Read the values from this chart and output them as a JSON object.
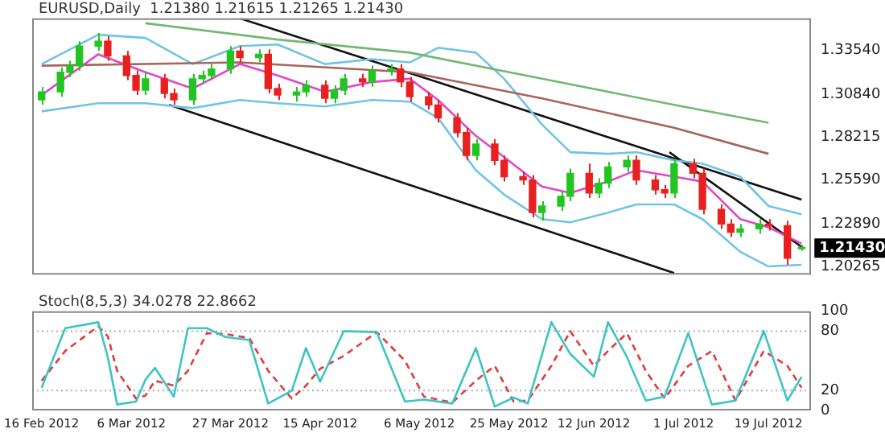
{
  "chart_data": [
    {
      "type": "candlestick",
      "title": "EURUSD,Daily  1.21380 1.21615 1.21265 1.21430",
      "x": [
        "2012-02-16",
        "2012-02-20",
        "2012-02-22",
        "2012-02-24",
        "2012-02-28",
        "2012-03-01",
        "2012-03-05",
        "2012-03-07",
        "2012-03-09",
        "2012-03-13",
        "2012-03-15",
        "2012-03-19",
        "2012-03-21",
        "2012-03-23",
        "2012-03-27",
        "2012-03-29",
        "2012-04-02",
        "2012-04-04",
        "2012-04-06",
        "2012-04-10",
        "2012-04-12",
        "2012-04-16",
        "2012-04-18",
        "2012-04-20",
        "2012-04-24",
        "2012-04-26",
        "2012-04-30",
        "2012-05-02",
        "2012-05-04",
        "2012-05-08",
        "2012-05-10",
        "2012-05-14",
        "2012-05-16",
        "2012-05-18",
        "2012-05-22",
        "2012-05-24",
        "2012-05-28",
        "2012-05-30",
        "2012-06-01",
        "2012-06-05",
        "2012-06-07",
        "2012-06-11",
        "2012-06-13",
        "2012-06-15",
        "2012-06-19",
        "2012-06-21",
        "2012-06-25",
        "2012-06-27",
        "2012-06-29",
        "2012-07-03",
        "2012-07-05",
        "2012-07-09",
        "2012-07-11",
        "2012-07-13",
        "2012-07-17",
        "2012-07-19",
        "2012-07-23",
        "2012-07-26"
      ],
      "ohlc": [
        [
          1.305,
          1.313,
          1.302,
          1.31
        ],
        [
          1.31,
          1.325,
          1.307,
          1.322
        ],
        [
          1.322,
          1.329,
          1.319,
          1.326
        ],
        [
          1.326,
          1.341,
          1.323,
          1.338
        ],
        [
          1.338,
          1.346,
          1.335,
          1.341
        ],
        [
          1.341,
          1.344,
          1.329,
          1.332
        ],
        [
          1.332,
          1.335,
          1.317,
          1.32
        ],
        [
          1.32,
          1.323,
          1.308,
          1.311
        ],
        [
          1.311,
          1.322,
          1.308,
          1.318
        ],
        [
          1.318,
          1.321,
          1.306,
          1.309
        ],
        [
          1.309,
          1.312,
          1.302,
          1.305
        ],
        [
          1.305,
          1.321,
          1.302,
          1.318
        ],
        [
          1.318,
          1.323,
          1.315,
          1.32
        ],
        [
          1.32,
          1.327,
          1.317,
          1.324
        ],
        [
          1.324,
          1.338,
          1.321,
          1.335
        ],
        [
          1.335,
          1.338,
          1.328,
          1.331
        ],
        [
          1.331,
          1.336,
          1.328,
          1.333
        ],
        [
          1.333,
          1.336,
          1.309,
          1.312
        ],
        [
          1.312,
          1.315,
          1.305,
          1.308
        ],
        [
          1.308,
          1.313,
          1.304,
          1.31
        ],
        [
          1.31,
          1.317,
          1.307,
          1.314
        ],
        [
          1.314,
          1.317,
          1.303,
          1.306
        ],
        [
          1.306,
          1.314,
          1.303,
          1.311
        ],
        [
          1.311,
          1.321,
          1.308,
          1.318
        ],
        [
          1.318,
          1.321,
          1.313,
          1.316
        ],
        [
          1.316,
          1.326,
          1.313,
          1.323
        ],
        [
          1.323,
          1.327,
          1.32,
          1.324
        ],
        [
          1.324,
          1.327,
          1.313,
          1.316
        ],
        [
          1.316,
          1.319,
          1.304,
          1.307
        ],
        [
          1.307,
          1.31,
          1.299,
          1.302
        ],
        [
          1.302,
          1.305,
          1.291,
          1.294
        ],
        [
          1.294,
          1.297,
          1.282,
          1.285
        ],
        [
          1.285,
          1.288,
          1.268,
          1.271
        ],
        [
          1.271,
          1.281,
          1.268,
          1.278
        ],
        [
          1.278,
          1.281,
          1.265,
          1.268
        ],
        [
          1.268,
          1.271,
          1.255,
          1.258
        ],
        [
          1.258,
          1.261,
          1.253,
          1.256
        ],
        [
          1.256,
          1.259,
          1.233,
          1.236
        ],
        [
          1.236,
          1.243,
          1.231,
          1.24
        ],
        [
          1.24,
          1.249,
          1.237,
          1.246
        ],
        [
          1.246,
          1.263,
          1.243,
          1.26
        ],
        [
          1.26,
          1.266,
          1.245,
          1.248
        ],
        [
          1.248,
          1.257,
          1.245,
          1.254
        ],
        [
          1.254,
          1.267,
          1.251,
          1.264
        ],
        [
          1.264,
          1.271,
          1.261,
          1.268
        ],
        [
          1.268,
          1.271,
          1.253,
          1.256
        ],
        [
          1.256,
          1.259,
          1.247,
          1.25
        ],
        [
          1.25,
          1.253,
          1.245,
          1.248
        ],
        [
          1.248,
          1.269,
          1.245,
          1.266
        ],
        [
          1.266,
          1.269,
          1.257,
          1.26
        ],
        [
          1.26,
          1.263,
          1.235,
          1.238
        ],
        [
          1.238,
          1.241,
          1.226,
          1.229
        ],
        [
          1.229,
          1.232,
          1.221,
          1.224
        ],
        [
          1.224,
          1.229,
          1.221,
          1.226
        ],
        [
          1.226,
          1.232,
          1.223,
          1.229
        ],
        [
          1.229,
          1.232,
          1.225,
          1.228
        ],
        [
          1.228,
          1.231,
          1.204,
          1.208
        ],
        [
          1.2138,
          1.21615,
          1.21265,
          1.2143
        ]
      ],
      "colors": [
        "#22c422",
        "#22c422",
        "#22c422",
        "#22c422",
        "#22c422",
        "#e82020",
        "#e82020",
        "#e82020",
        "#22c422",
        "#e82020",
        "#e82020",
        "#22c422",
        "#22c422",
        "#22c422",
        "#22c422",
        "#e82020",
        "#22c422",
        "#e82020",
        "#e82020",
        "#22c422",
        "#22c422",
        "#e82020",
        "#22c422",
        "#22c422",
        "#e82020",
        "#22c422",
        "#22c422",
        "#e82020",
        "#e82020",
        "#e82020",
        "#e82020",
        "#e82020",
        "#e82020",
        "#22c422",
        "#e82020",
        "#e82020",
        "#e82020",
        "#e82020",
        "#22c422",
        "#22c422",
        "#22c422",
        "#e82020",
        "#22c422",
        "#22c422",
        "#22c422",
        "#e82020",
        "#e82020",
        "#e82020",
        "#22c422",
        "#e82020",
        "#e82020",
        "#e82020",
        "#e82020",
        "#22c422",
        "#22c422",
        "#e82020",
        "#e82020",
        "#22c422"
      ],
      "series": [
        {
          "type": "line",
          "color": "#72b872",
          "x": [
            "2012-03-09",
            "2012-04-06",
            "2012-05-04",
            "2012-06-01",
            "2012-06-29",
            "2012-07-19"
          ],
          "values": [
            1.352,
            1.342,
            1.334,
            1.318,
            1.302,
            1.291
          ]
        },
        {
          "type": "line",
          "color": "#a8645a",
          "x": [
            "2012-02-16",
            "2012-03-29",
            "2012-05-04",
            "2012-06-01",
            "2012-06-29",
            "2012-07-19"
          ],
          "values": [
            1.326,
            1.328,
            1.322,
            1.306,
            1.288,
            1.272
          ]
        },
        {
          "type": "line",
          "color": "#70c4e4",
          "x": [
            "2012-02-16",
            "2012-02-28",
            "2012-03-09",
            "2012-03-19",
            "2012-03-29",
            "2012-04-06",
            "2012-04-16",
            "2012-04-26",
            "2012-05-04",
            "2012-05-10",
            "2012-05-18",
            "2012-05-24",
            "2012-06-01",
            "2012-06-07",
            "2012-06-15",
            "2012-06-21",
            "2012-06-29",
            "2012-07-05",
            "2012-07-13",
            "2012-07-19",
            "2012-07-26"
          ],
          "values": [
            1.327,
            1.345,
            1.343,
            1.327,
            1.338,
            1.339,
            1.327,
            1.33,
            1.328,
            1.337,
            1.334,
            1.318,
            1.29,
            1.273,
            1.272,
            1.273,
            1.268,
            1.266,
            1.258,
            1.24,
            1.235
          ]
        },
        {
          "type": "line",
          "color": "#70c4e4",
          "x": [
            "2012-02-16",
            "2012-02-28",
            "2012-03-09",
            "2012-03-19",
            "2012-03-29",
            "2012-04-06",
            "2012-04-16",
            "2012-04-26",
            "2012-05-04",
            "2012-05-10",
            "2012-05-18",
            "2012-05-24",
            "2012-06-01",
            "2012-06-07",
            "2012-06-15",
            "2012-06-21",
            "2012-06-29",
            "2012-07-05",
            "2012-07-13",
            "2012-07-19",
            "2012-07-26"
          ],
          "values": [
            1.298,
            1.303,
            1.303,
            1.3,
            1.305,
            1.303,
            1.301,
            1.305,
            1.304,
            1.294,
            1.262,
            1.247,
            1.232,
            1.23,
            1.236,
            1.241,
            1.241,
            1.232,
            1.212,
            1.203,
            1.204
          ]
        },
        {
          "type": "line",
          "color": "#e048c8",
          "x": [
            "2012-02-16",
            "2012-02-28",
            "2012-03-09",
            "2012-03-19",
            "2012-03-29",
            "2012-04-06",
            "2012-04-16",
            "2012-04-26",
            "2012-05-04",
            "2012-05-10",
            "2012-05-18",
            "2012-05-24",
            "2012-06-01",
            "2012-06-07",
            "2012-06-15",
            "2012-06-21",
            "2012-06-29",
            "2012-07-05",
            "2012-07-13",
            "2012-07-19",
            "2012-07-26"
          ],
          "values": [
            1.308,
            1.333,
            1.322,
            1.312,
            1.327,
            1.32,
            1.31,
            1.316,
            1.318,
            1.305,
            1.283,
            1.27,
            1.252,
            1.248,
            1.255,
            1.262,
            1.258,
            1.255,
            1.232,
            1.227,
            1.217
          ]
        },
        {
          "type": "line",
          "color": "#111111",
          "x": [
            "2012-03-29",
            "2012-07-26"
          ],
          "values": [
            1.355,
            1.244
          ]
        },
        {
          "type": "line",
          "color": "#111111",
          "x": [
            "2012-06-28",
            "2012-07-26"
          ],
          "values": [
            1.273,
            1.215
          ]
        },
        {
          "type": "line",
          "color": "#111111",
          "x": [
            "2012-03-14",
            "2012-06-29"
          ],
          "values": [
            1.302,
            1.199
          ]
        }
      ],
      "xlim": [
        "2012-02-14",
        "2012-07-28"
      ],
      "ylim": [
        1.198,
        1.355
      ],
      "yticks": [
        {
          "value": 1.3354,
          "label": "1.33540"
        },
        {
          "value": 1.3084,
          "label": "1.30840"
        },
        {
          "value": 1.28215,
          "label": "1.28215"
        },
        {
          "value": 1.2559,
          "label": "1.25590"
        },
        {
          "value": 1.2289,
          "label": "1.22890"
        },
        {
          "value": 1.20265,
          "label": "1.20265"
        }
      ],
      "annotations": [
        {
          "text": "1.21430",
          "x": "2012-07-26",
          "y": 1.2143
        }
      ],
      "tick_labels": "y",
      "legend": false,
      "grid": false
    },
    {
      "type": "line",
      "title": "Stoch(8,5,3) 34.0278 22.8662",
      "x": [
        "2012-02-16",
        "2012-02-21",
        "2012-02-28",
        "2012-03-01",
        "2012-03-03",
        "2012-03-07",
        "2012-03-09",
        "2012-03-11",
        "2012-03-15",
        "2012-03-18",
        "2012-03-22",
        "2012-03-26",
        "2012-03-31",
        "2012-04-04",
        "2012-04-09",
        "2012-04-12",
        "2012-04-15",
        "2012-04-20",
        "2012-04-27",
        "2012-05-03",
        "2012-05-07",
        "2012-05-13",
        "2012-05-18",
        "2012-05-22",
        "2012-05-26",
        "2012-05-29",
        "2012-06-03",
        "2012-06-07",
        "2012-06-12",
        "2012-06-15",
        "2012-06-19",
        "2012-06-23",
        "2012-06-27",
        "2012-07-02",
        "2012-07-07",
        "2012-07-12",
        "2012-07-18",
        "2012-07-23",
        "2012-07-26"
      ],
      "series": [
        {
          "color": "#3cc4c4",
          "line_style": "solid",
          "values": [
            23,
            83,
            89,
            54,
            6,
            9,
            31,
            43,
            14,
            83,
            83,
            74,
            71,
            7,
            20,
            63,
            29,
            80,
            79,
            9,
            11,
            7,
            63,
            4,
            13,
            7,
            89,
            57,
            34,
            89,
            54,
            10,
            14,
            78,
            6,
            10,
            80,
            10,
            34
          ]
        },
        {
          "color": "#e03c3c",
          "line_style": "dashed",
          "values": [
            30,
            60,
            85,
            75,
            40,
            12,
            15,
            30,
            25,
            40,
            78,
            77,
            73,
            40,
            12,
            25,
            42,
            55,
            79,
            50,
            14,
            8,
            30,
            45,
            9,
            10,
            45,
            80,
            45,
            60,
            78,
            40,
            12,
            45,
            60,
            10,
            60,
            45,
            23
          ]
        }
      ],
      "xlim": [
        "2012-02-14",
        "2012-07-28"
      ],
      "ylim": [
        0,
        100
      ],
      "xticks": [
        {
          "value": "2012-02-16",
          "label": "16 Feb 2012"
        },
        {
          "value": "2012-03-06",
          "label": "6 Mar 2012"
        },
        {
          "value": "2012-03-27",
          "label": "27 Mar 2012"
        },
        {
          "value": "2012-04-15",
          "label": "15 Apr 2012"
        },
        {
          "value": "2012-05-06",
          "label": "6 May 2012"
        },
        {
          "value": "2012-05-25",
          "label": "25 May 2012"
        },
        {
          "value": "2012-06-12",
          "label": "12 Jun 2012"
        },
        {
          "value": "2012-07-01",
          "label": "1 Jul 2012"
        },
        {
          "value": "2012-07-19",
          "label": "19 Jul 2012"
        }
      ],
      "yticks": [
        0,
        20,
        80,
        100
      ],
      "ref_lines": [
        {
          "axis": "y",
          "value": 20,
          "color": "#b0b0b0",
          "line_style": "dotted"
        },
        {
          "axis": "y",
          "value": 80,
          "color": "#b0b0b0",
          "line_style": "dotted"
        }
      ],
      "legend": false,
      "grid": false,
      "marker": "none"
    }
  ]
}
